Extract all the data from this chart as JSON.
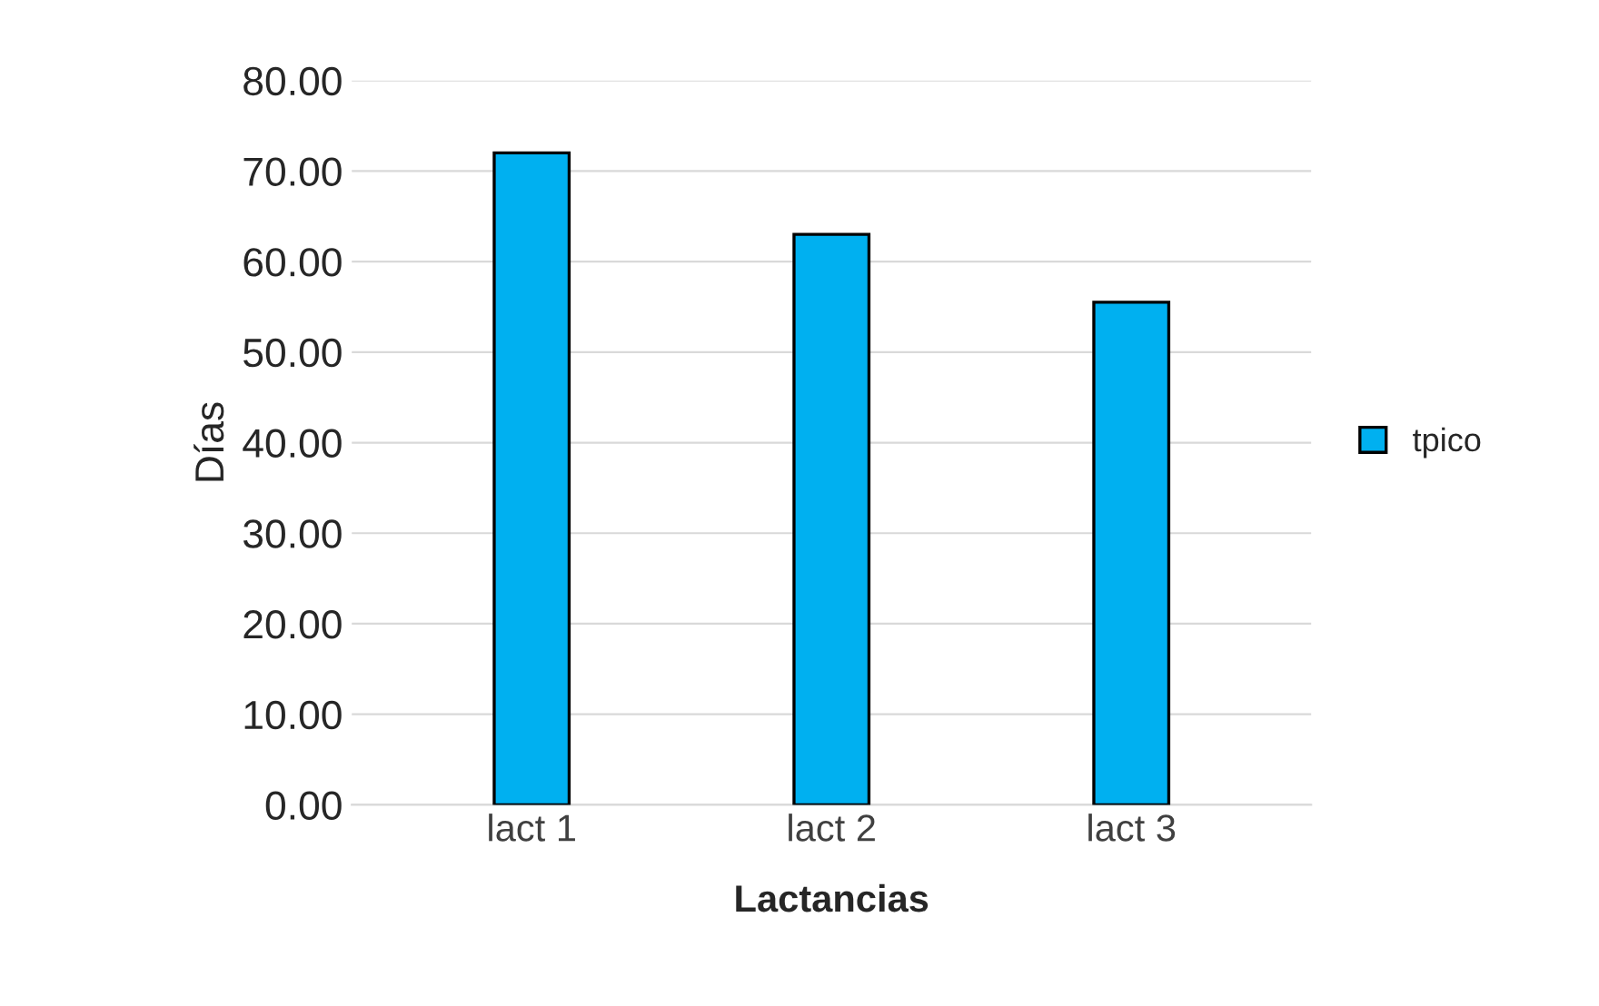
{
  "chart_data": {
    "type": "bar",
    "xlabel": "Lactancias",
    "ylabel": "Días",
    "categories": [
      "lact 1",
      "lact 2",
      "lact 3"
    ],
    "series": [
      {
        "name": "tpico",
        "color": "#00b0f0",
        "values": [
          72,
          63,
          55.5
        ]
      }
    ],
    "ylim": [
      0,
      80
    ],
    "yticks": [
      {
        "value": 0,
        "label": "0.00"
      },
      {
        "value": 10,
        "label": "10.00"
      },
      {
        "value": 20,
        "label": "20.00"
      },
      {
        "value": 30,
        "label": "30.00"
      },
      {
        "value": 40,
        "label": "40.00"
      },
      {
        "value": 50,
        "label": "50.00"
      },
      {
        "value": 60,
        "label": "60.00"
      },
      {
        "value": 70,
        "label": "70.00"
      },
      {
        "value": 80,
        "label": "80.00"
      }
    ],
    "grid": "y",
    "legend": "right"
  }
}
